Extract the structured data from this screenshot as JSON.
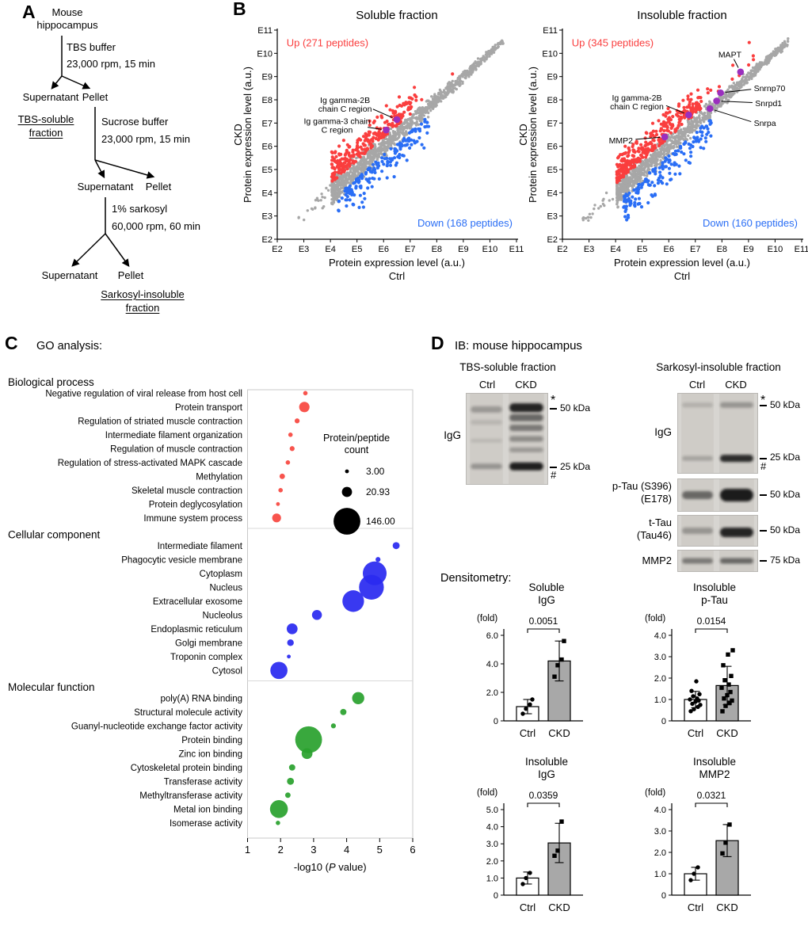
{
  "panelA": {
    "label": "A",
    "source_line1": "Mouse",
    "source_line2": "hippocampus",
    "step1_reagent": "TBS buffer",
    "step1_spin": "23,000 rpm, 15 min",
    "row1_left": "Supernatant",
    "row1_right": "Pellet",
    "soluble_line1": "TBS-soluble",
    "soluble_line2": "fraction",
    "step2_reagent": "Sucrose buffer",
    "step2_spin": "23,000 rpm, 15 min",
    "row2_left": "Supernatant",
    "row2_right": "Pellet",
    "step3_reagent": "1% sarkosyl",
    "step3_spin": "60,000 rpm, 60 min",
    "row3_left": "Supernatant",
    "row3_right": "Pellet",
    "insoluble_line1": "Sarkosyl-insoluble",
    "insoluble_line2": "fraction"
  },
  "panelB": {
    "label": "B"
  },
  "panelC": {
    "label": "C",
    "heading": "GO analysis:"
  },
  "panelD": {
    "label": "D",
    "heading": "IB: mouse hippocampus",
    "densitometry_heading": "Densitometry:",
    "tbs": {
      "title": "TBS-soluble fraction",
      "lanes": [
        "Ctrl",
        "CKD"
      ],
      "antibody": "IgG",
      "marker_star": "*",
      "marker_50": "50 kDa",
      "marker_hash": "#",
      "marker_25": "25 kDa",
      "bands": {
        "ctrl": [
          [
            0.18,
            0.28,
            8
          ],
          [
            0.32,
            0.12,
            6
          ],
          [
            0.52,
            0.1,
            5
          ],
          [
            0.8,
            0.3,
            7
          ]
        ],
        "ckd": [
          [
            0.16,
            0.92,
            11
          ],
          [
            0.27,
            0.55,
            9
          ],
          [
            0.38,
            0.45,
            8
          ],
          [
            0.5,
            0.35,
            7
          ],
          [
            0.62,
            0.28,
            6
          ],
          [
            0.8,
            0.95,
            10
          ]
        ]
      }
    },
    "ins": {
      "title": "Sarkosyl-insoluble fraction",
      "lanes": [
        "Ctrl",
        "CKD"
      ],
      "rows": [
        {
          "ab1": "IgG",
          "ab2": "",
          "m_star": "*",
          "m1": "50 kDa",
          "m_hash": "#",
          "m2": "25 kDa",
          "bands": {
            "ctrl": [
              [
                0.15,
                0.15,
                6
              ],
              [
                0.81,
                0.22,
                6
              ]
            ],
            "ckd": [
              [
                0.15,
                0.3,
                7
              ],
              [
                0.81,
                0.88,
                9
              ]
            ]
          }
        },
        {
          "ab1": "p-Tau (S396)",
          "ab2": "(E178)",
          "m1": "50 kDa",
          "bands": {
            "ctrl": [
              [
                0.5,
                0.55,
                10
              ]
            ],
            "ckd": [
              [
                0.5,
                0.97,
                16
              ]
            ]
          }
        },
        {
          "ab1": "t-Tau",
          "ab2": "(Tau46)",
          "m1": "50 kDa",
          "bands": {
            "ctrl": [
              [
                0.5,
                0.3,
                8
              ]
            ],
            "ckd": [
              [
                0.55,
                0.92,
                12
              ]
            ]
          }
        },
        {
          "ab1": "MMP2",
          "ab2": "",
          "m1": "75 kDa",
          "bands": {
            "ctrl": [
              [
                0.5,
                0.45,
                7
              ]
            ],
            "ckd": [
              [
                0.5,
                0.55,
                7
              ]
            ]
          }
        }
      ]
    }
  },
  "chart_data": [
    {
      "type": "scatter",
      "title": "Soluble fraction",
      "xlabel": "Protein expression level (a.u.)",
      "x_group": "Ctrl",
      "ylabel": "Protein expression level (a.u.)",
      "y_group": "CKD",
      "ticks": [
        "E2",
        "E3",
        "E4",
        "E5",
        "E6",
        "E7",
        "E8",
        "E9",
        "E10",
        "E11"
      ],
      "axis_range": [
        2,
        11
      ],
      "up_label": "Up (271 peptides)",
      "up_count": 271,
      "down_label": "Down (168 peptides)",
      "down_count": 168,
      "colors": {
        "up": "#fa3e3e",
        "down": "#2a6ef5",
        "other": "#a7a7a7",
        "highlight": "#9a2fbe"
      },
      "seed": 20240,
      "highlights": [
        {
          "name": "Ig gamma-2B chain C region",
          "label_lines": [
            "Ig gamma-2B",
            "chain C region"
          ],
          "point": [
            6.5,
            7.15
          ],
          "label_pos": [
            4.55,
            7.8
          ],
          "line_from": [
            5.6,
            7.6
          ],
          "anchor": "middle"
        },
        {
          "name": "Ig gamma-3 chain C region",
          "label_lines": [
            "Ig gamma-3 chain",
            "C region"
          ],
          "point": [
            6.1,
            6.7
          ],
          "label_pos": [
            4.25,
            6.9
          ],
          "line_from": [
            5.4,
            6.82
          ],
          "anchor": "middle"
        }
      ]
    },
    {
      "type": "scatter",
      "title": "Insoluble fraction",
      "xlabel": "Protein expression level (a.u.)",
      "x_group": "Ctrl",
      "ylabel": "Protein expression level (a.u.)",
      "y_group": "CKD",
      "ticks": [
        "E2",
        "E3",
        "E4",
        "E5",
        "E6",
        "E7",
        "E8",
        "E9",
        "E10",
        "E11"
      ],
      "axis_range": [
        2,
        11
      ],
      "up_label": "Up (345 peptides)",
      "up_count": 345,
      "down_label": "Down (160 peptides)",
      "down_count": 160,
      "colors": {
        "up": "#fa3e3e",
        "down": "#2a6ef5",
        "other": "#a7a7a7",
        "highlight": "#9a2fbe"
      },
      "seed": 77701,
      "highlights": [
        {
          "name": "MAPT",
          "label_lines": [
            "MAPT"
          ],
          "point": [
            8.7,
            9.2
          ],
          "label_pos": [
            8.3,
            9.95
          ],
          "line_from": [
            8.45,
            9.75
          ],
          "anchor": "middle"
        },
        {
          "name": "Snrnp70",
          "label_lines": [
            "Snrnp70"
          ],
          "point": [
            7.95,
            8.3
          ],
          "label_pos": [
            9.2,
            8.5
          ],
          "line_from": [
            9.1,
            8.45
          ],
          "anchor": "start"
        },
        {
          "name": "Snrpd1",
          "label_lines": [
            "Snrpd1"
          ],
          "point": [
            7.8,
            7.95
          ],
          "label_pos": [
            9.25,
            7.85
          ],
          "line_from": [
            9.15,
            7.88
          ],
          "anchor": "start"
        },
        {
          "name": "Snrpa",
          "label_lines": [
            "Snrpa"
          ],
          "point": [
            7.55,
            7.62
          ],
          "label_pos": [
            9.2,
            7.0
          ],
          "line_from": [
            9.1,
            7.06
          ],
          "anchor": "start"
        },
        {
          "name": "Ig gamma-2B chain C region",
          "label_lines": [
            "Ig gamma-2B",
            "chain C region"
          ],
          "point": [
            6.75,
            7.35
          ],
          "label_pos": [
            4.8,
            7.9
          ],
          "line_from": [
            5.9,
            7.75
          ],
          "anchor": "middle"
        },
        {
          "name": "MMP2",
          "label_lines": [
            "MMP2"
          ],
          "point": [
            5.85,
            6.4
          ],
          "label_pos": [
            4.2,
            6.25
          ],
          "line_from": [
            4.75,
            6.3
          ],
          "anchor": "middle"
        }
      ]
    },
    {
      "type": "bubble",
      "heading": "GO analysis:",
      "xlabel": "-log10 (P value)",
      "xlabel_parts": {
        "pre": "-log10 (",
        "italic": "P",
        "post": " value)"
      },
      "x_ticks": [
        1,
        2,
        3,
        4,
        5,
        6
      ],
      "x_range": [
        1,
        6
      ],
      "legend": {
        "title_lines": [
          "Protein/peptide",
          "count"
        ],
        "sizes": [
          3.0,
          20.93,
          146.0
        ],
        "size_labels": [
          "3.00",
          "20.93",
          "146.00"
        ]
      },
      "categories": [
        {
          "name": "Biological process",
          "color": "#f8473f",
          "rows": [
            {
              "label": "Negative regulation of viral release from host cell",
              "x": 2.75,
              "count": 4
            },
            {
              "label": "Protein transport",
              "x": 2.72,
              "count": 22
            },
            {
              "label": "Regulation of striated muscle contraction",
              "x": 2.5,
              "count": 5
            },
            {
              "label": "Intermediate filament organization",
              "x": 2.3,
              "count": 4
            },
            {
              "label": "Regulation of muscle contraction",
              "x": 2.35,
              "count": 5
            },
            {
              "label": "Regulation of stress-activated MAPK cascade",
              "x": 2.22,
              "count": 4
            },
            {
              "label": "Methylation",
              "x": 2.05,
              "count": 6
            },
            {
              "label": "Skeletal muscle contraction",
              "x": 2.0,
              "count": 4
            },
            {
              "label": "Protein deglycosylation",
              "x": 1.92,
              "count": 3
            },
            {
              "label": "Immune system process",
              "x": 1.88,
              "count": 16
            }
          ]
        },
        {
          "name": "Cellular component",
          "color": "#2a2af0",
          "rows": [
            {
              "label": "Intermediate filament",
              "x": 5.5,
              "count": 10
            },
            {
              "label": "Phagocytic vesicle membrane",
              "x": 4.95,
              "count": 5
            },
            {
              "label": "Cytoplasm",
              "x": 4.85,
              "count": 115
            },
            {
              "label": "Nucleus",
              "x": 4.75,
              "count": 125
            },
            {
              "label": "Extracellular exosome",
              "x": 4.2,
              "count": 95
            },
            {
              "label": "Nucleolus",
              "x": 3.1,
              "count": 20
            },
            {
              "label": "Endoplasmic reticulum",
              "x": 2.35,
              "count": 24
            },
            {
              "label": "Golgi membrane",
              "x": 2.3,
              "count": 9
            },
            {
              "label": "Troponin complex",
              "x": 2.25,
              "count": 3
            },
            {
              "label": "Cytosol",
              "x": 1.95,
              "count": 60
            }
          ]
        },
        {
          "name": "Molecular function",
          "color": "#2aa12e",
          "rows": [
            {
              "label": "poly(A) RNA binding",
              "x": 4.35,
              "count": 30
            },
            {
              "label": "Structural molecule activity",
              "x": 3.9,
              "count": 8
            },
            {
              "label": "Guanyl-nucleotide exchange factor activity",
              "x": 3.6,
              "count": 5
            },
            {
              "label": "Protein binding",
              "x": 2.85,
              "count": 146
            },
            {
              "label": "Zinc ion binding",
              "x": 2.8,
              "count": 24
            },
            {
              "label": "Cytoskeletal protein binding",
              "x": 2.35,
              "count": 8
            },
            {
              "label": "Transferase activity",
              "x": 2.3,
              "count": 10
            },
            {
              "label": "Methyltransferase activity",
              "x": 2.22,
              "count": 6
            },
            {
              "label": "Metal ion binding",
              "x": 1.95,
              "count": 65
            },
            {
              "label": "Isomerase activity",
              "x": 1.92,
              "count": 4
            }
          ]
        }
      ]
    },
    {
      "type": "bar",
      "title_lines": [
        "Soluble",
        "IgG"
      ],
      "ylabel": "(fold)",
      "p_value": "0.0051",
      "ymax": 6,
      "yticks": [
        {
          "v": 0,
          "label": "0"
        },
        {
          "v": 2,
          "label": "2.0"
        },
        {
          "v": 4,
          "label": "4.0"
        },
        {
          "v": 6,
          "label": "6.0"
        }
      ],
      "groups": [
        {
          "label": "Ctrl",
          "mean": 1.0,
          "sd": 0.5,
          "marker": "circle",
          "fill": "#ffffff",
          "points": [
            0.5,
            0.85,
            1.15,
            1.5
          ]
        },
        {
          "label": "CKD",
          "mean": 4.2,
          "sd": 1.4,
          "marker": "square",
          "fill": "#a8a8a8",
          "points": [
            3.1,
            3.9,
            4.3,
            5.6
          ]
        }
      ]
    },
    {
      "type": "bar",
      "title_lines": [
        "Insoluble",
        "p-Tau"
      ],
      "ylabel": "(fold)",
      "p_value": "0.0154",
      "ymax": 4,
      "yticks": [
        {
          "v": 0,
          "label": "0"
        },
        {
          "v": 1,
          "label": "1.0"
        },
        {
          "v": 2,
          "label": "2.0"
        },
        {
          "v": 3,
          "label": "3.0"
        },
        {
          "v": 4,
          "label": "4.0"
        }
      ],
      "groups": [
        {
          "label": "Ctrl",
          "mean": 1.0,
          "sd": 0.38,
          "marker": "circle",
          "fill": "#ffffff",
          "points": [
            0.45,
            0.55,
            0.65,
            0.75,
            0.8,
            0.9,
            0.95,
            1.0,
            1.05,
            1.15,
            1.25,
            1.4,
            1.85
          ]
        },
        {
          "label": "CKD",
          "mean": 1.65,
          "sd": 0.9,
          "marker": "square",
          "fill": "#a8a8a8",
          "points": [
            0.45,
            0.7,
            0.85,
            0.95,
            1.05,
            1.2,
            1.35,
            1.55,
            1.7,
            1.9,
            2.1,
            2.6,
            3.1,
            3.3
          ]
        }
      ]
    },
    {
      "type": "bar",
      "title_lines": [
        "Insoluble",
        "IgG"
      ],
      "ylabel": "(fold)",
      "p_value": "0.0359",
      "ymax": 5,
      "yticks": [
        {
          "v": 0,
          "label": "0"
        },
        {
          "v": 1,
          "label": "1.0"
        },
        {
          "v": 2,
          "label": "2.0"
        },
        {
          "v": 3,
          "label": "3.0"
        },
        {
          "v": 4,
          "label": "4.0"
        },
        {
          "v": 5,
          "label": "5.0"
        }
      ],
      "groups": [
        {
          "label": "Ctrl",
          "mean": 1.0,
          "sd": 0.35,
          "marker": "circle",
          "fill": "#ffffff",
          "points": [
            0.65,
            1.0,
            1.3
          ]
        },
        {
          "label": "CKD",
          "mean": 3.05,
          "sd": 1.15,
          "marker": "square",
          "fill": "#a8a8a8",
          "points": [
            2.3,
            2.6,
            4.3
          ]
        }
      ]
    },
    {
      "type": "bar",
      "title_lines": [
        "Insoluble",
        "MMP2"
      ],
      "ylabel": "(fold)",
      "p_value": "0.0321",
      "ymax": 4,
      "yticks": [
        {
          "v": 0,
          "label": "0"
        },
        {
          "v": 1,
          "label": "1.0"
        },
        {
          "v": 2,
          "label": "2.0"
        },
        {
          "v": 3,
          "label": "3.0"
        },
        {
          "v": 4,
          "label": "4.0"
        }
      ],
      "groups": [
        {
          "label": "Ctrl",
          "mean": 1.0,
          "sd": 0.3,
          "marker": "circle",
          "fill": "#ffffff",
          "points": [
            0.7,
            1.0,
            1.3
          ]
        },
        {
          "label": "CKD",
          "mean": 2.55,
          "sd": 0.75,
          "marker": "square",
          "fill": "#a8a8a8",
          "points": [
            1.95,
            2.45,
            3.3
          ]
        }
      ]
    }
  ]
}
